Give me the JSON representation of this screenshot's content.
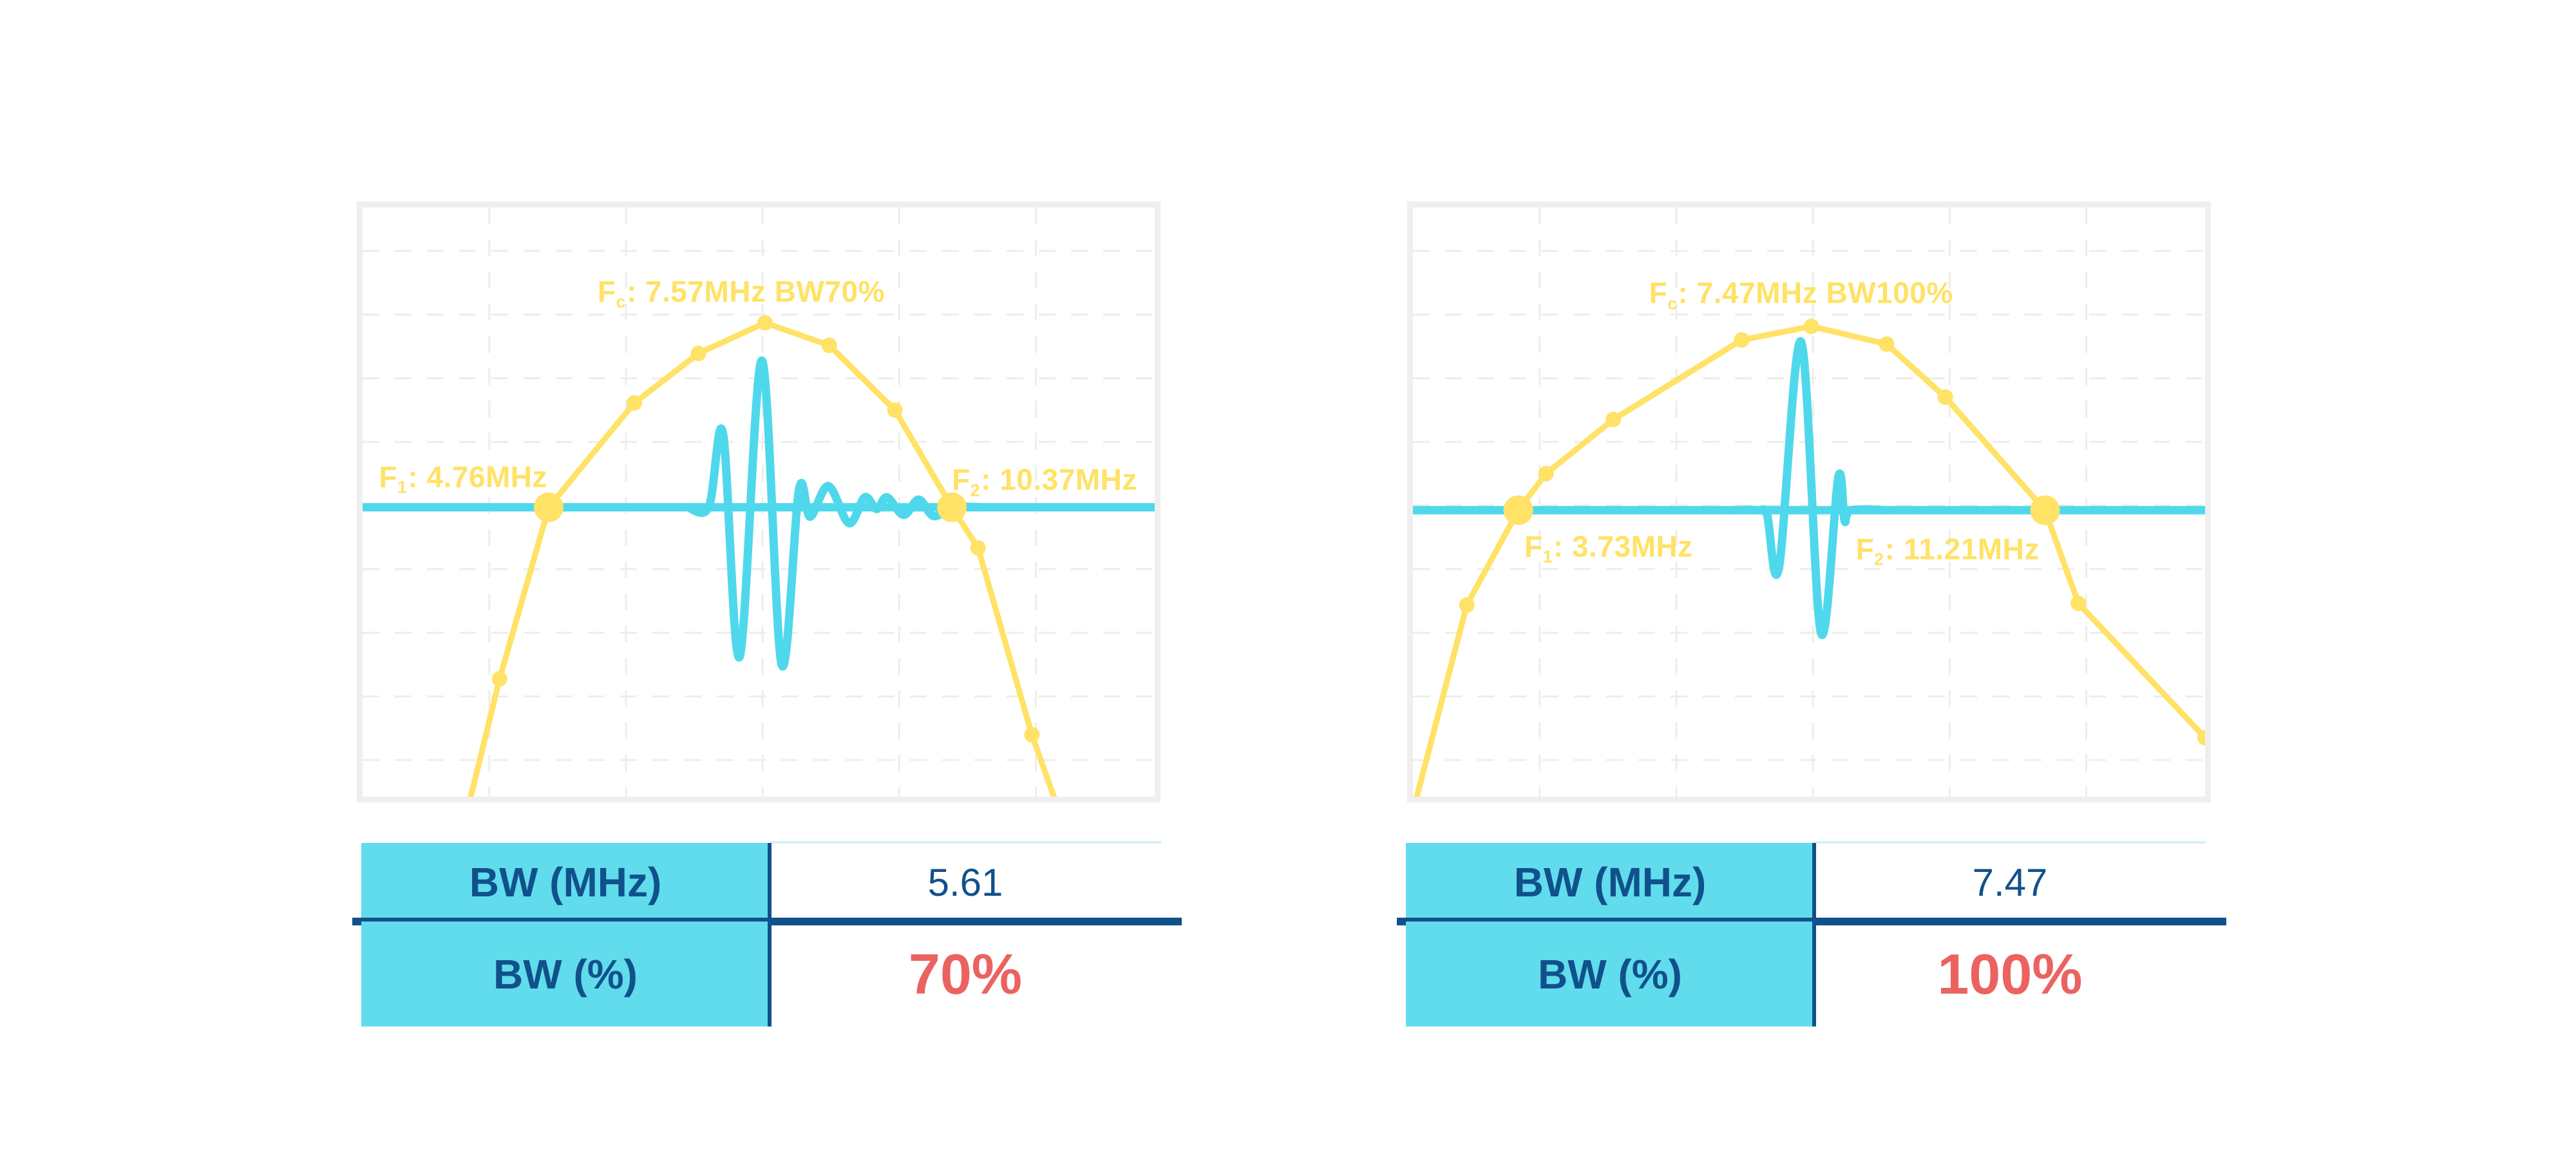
{
  "colors": {
    "yellow": "#FFE266",
    "cyan": "#4FD8EB",
    "table_cyan": "#61DCEC",
    "navy": "#11518B",
    "red": "#EA6360",
    "grid": "#EDEDEA",
    "chart_border": "#EFEFEF",
    "table_top_line": "#D9F1F8"
  },
  "chart_data": [
    {
      "type": "line",
      "panel": "left",
      "title": "",
      "xlabel": "",
      "ylabel": "",
      "axes_visible": false,
      "grid_on": true,
      "center_frequency_mhz": 7.57,
      "f1_mhz": 4.76,
      "f2_mhz": 10.37,
      "bandwidth_mhz": 5.61,
      "bandwidth_percent": 70,
      "annotations": {
        "fc": {
          "f": "F",
          "sub": "c",
          "rest": ": 7.57MHz BW70%",
          "x": 0.478,
          "y": 0.145
        },
        "f1": {
          "f": "F",
          "sub": "1",
          "rest": ": 4.76MHz",
          "x": 0.127,
          "y": 0.46
        },
        "f2": {
          "f": "F",
          "sub": "2",
          "rest": ": 10.37MHz",
          "x": 0.861,
          "y": 0.465
        }
      },
      "grid": {
        "x": [
          0.16,
          0.3325,
          0.505,
          0.6775,
          0.85
        ],
        "y": [
          0.074,
          0.182,
          0.29,
          0.398,
          0.506,
          0.614,
          0.722,
          0.83,
          0.938
        ]
      },
      "spectrum": {
        "points": [
          [
            0.133,
            1.02
          ],
          [
            0.173,
            0.8
          ],
          [
            0.235,
            0.509
          ],
          [
            0.343,
            0.332
          ],
          [
            0.424,
            0.248
          ],
          [
            0.508,
            0.196
          ],
          [
            0.589,
            0.234
          ],
          [
            0.672,
            0.344
          ],
          [
            0.744,
            0.509
          ],
          [
            0.777,
            0.578
          ],
          [
            0.845,
            0.895
          ],
          [
            0.878,
            1.02
          ]
        ],
        "dots": [
          [
            0.173,
            0.8
          ],
          [
            0.343,
            0.332
          ],
          [
            0.424,
            0.248
          ],
          [
            0.508,
            0.196
          ],
          [
            0.589,
            0.234
          ],
          [
            0.672,
            0.344
          ],
          [
            0.777,
            0.578
          ],
          [
            0.845,
            0.895
          ]
        ],
        "crossings": [
          [
            0.235,
            0.509
          ],
          [
            0.744,
            0.509
          ]
        ]
      },
      "pulse": {
        "baseline_y": 0.509,
        "points": [
          [
            0.41,
            0.509
          ],
          [
            0.437,
            0.509
          ],
          [
            0.455,
            0.383
          ],
          [
            0.476,
            0.763
          ],
          [
            0.504,
            0.26
          ],
          [
            0.529,
            0.776
          ],
          [
            0.551,
            0.479
          ],
          [
            0.565,
            0.525
          ],
          [
            0.588,
            0.473
          ],
          [
            0.614,
            0.536
          ],
          [
            0.634,
            0.492
          ],
          [
            0.649,
            0.512
          ],
          [
            0.662,
            0.492
          ],
          [
            0.683,
            0.522
          ],
          [
            0.702,
            0.496
          ],
          [
            0.721,
            0.524
          ],
          [
            0.744,
            0.509
          ],
          [
            0.78,
            0.509
          ]
        ]
      },
      "table": {
        "rows": [
          {
            "label": "BW (MHz)",
            "value": "5.61"
          },
          {
            "label": "BW (%)",
            "value": "70%"
          }
        ]
      }
    },
    {
      "type": "line",
      "panel": "right",
      "title": "",
      "xlabel": "",
      "ylabel": "",
      "axes_visible": false,
      "grid_on": true,
      "center_frequency_mhz": 7.47,
      "f1_mhz": 3.73,
      "f2_mhz": 11.21,
      "bandwidth_mhz": 7.47,
      "bandwidth_percent": 100,
      "annotations": {
        "fc": {
          "f": "F",
          "sub": "c",
          "rest": ": 7.47MHz BW100%",
          "x": 0.49,
          "y": 0.148
        },
        "f1": {
          "f": "F",
          "sub": "1",
          "rest": ": 3.73MHz",
          "x": 0.247,
          "y": 0.578
        },
        "f2": {
          "f": "F",
          "sub": "2",
          "rest": ": 11.21MHz",
          "x": 0.675,
          "y": 0.582
        }
      },
      "grid": {
        "x": [
          0.16,
          0.3325,
          0.505,
          0.6775,
          0.85
        ],
        "y": [
          0.074,
          0.182,
          0.29,
          0.398,
          0.506,
          0.614,
          0.722,
          0.83,
          0.938
        ]
      },
      "spectrum": {
        "points": [
          [
            0.003,
            1.01
          ],
          [
            0.068,
            0.675
          ],
          [
            0.133,
            0.514
          ],
          [
            0.168,
            0.452
          ],
          [
            0.253,
            0.36
          ],
          [
            0.415,
            0.225
          ],
          [
            0.503,
            0.202
          ],
          [
            0.598,
            0.232
          ],
          [
            0.672,
            0.322
          ],
          [
            0.798,
            0.514
          ],
          [
            0.84,
            0.672
          ],
          [
            1.0,
            0.9
          ]
        ],
        "dots": [
          [
            0.068,
            0.675
          ],
          [
            0.168,
            0.452
          ],
          [
            0.253,
            0.36
          ],
          [
            0.415,
            0.225
          ],
          [
            0.503,
            0.202
          ],
          [
            0.598,
            0.232
          ],
          [
            0.672,
            0.322
          ],
          [
            0.84,
            0.672
          ],
          [
            1.0,
            0.9
          ]
        ],
        "crossings": [
          [
            0.133,
            0.514
          ],
          [
            0.798,
            0.514
          ]
        ]
      },
      "pulse": {
        "baseline_y": 0.514,
        "points": [
          [
            0.4,
            0.514
          ],
          [
            0.435,
            0.514
          ],
          [
            0.447,
            0.522
          ],
          [
            0.462,
            0.612
          ],
          [
            0.49,
            0.228
          ],
          [
            0.515,
            0.722
          ],
          [
            0.537,
            0.458
          ],
          [
            0.545,
            0.532
          ],
          [
            0.553,
            0.514
          ],
          [
            0.6,
            0.514
          ]
        ]
      },
      "table": {
        "rows": [
          {
            "label": "BW (MHz)",
            "value": "7.47"
          },
          {
            "label": "BW (%)",
            "value": "100%"
          }
        ]
      }
    }
  ]
}
